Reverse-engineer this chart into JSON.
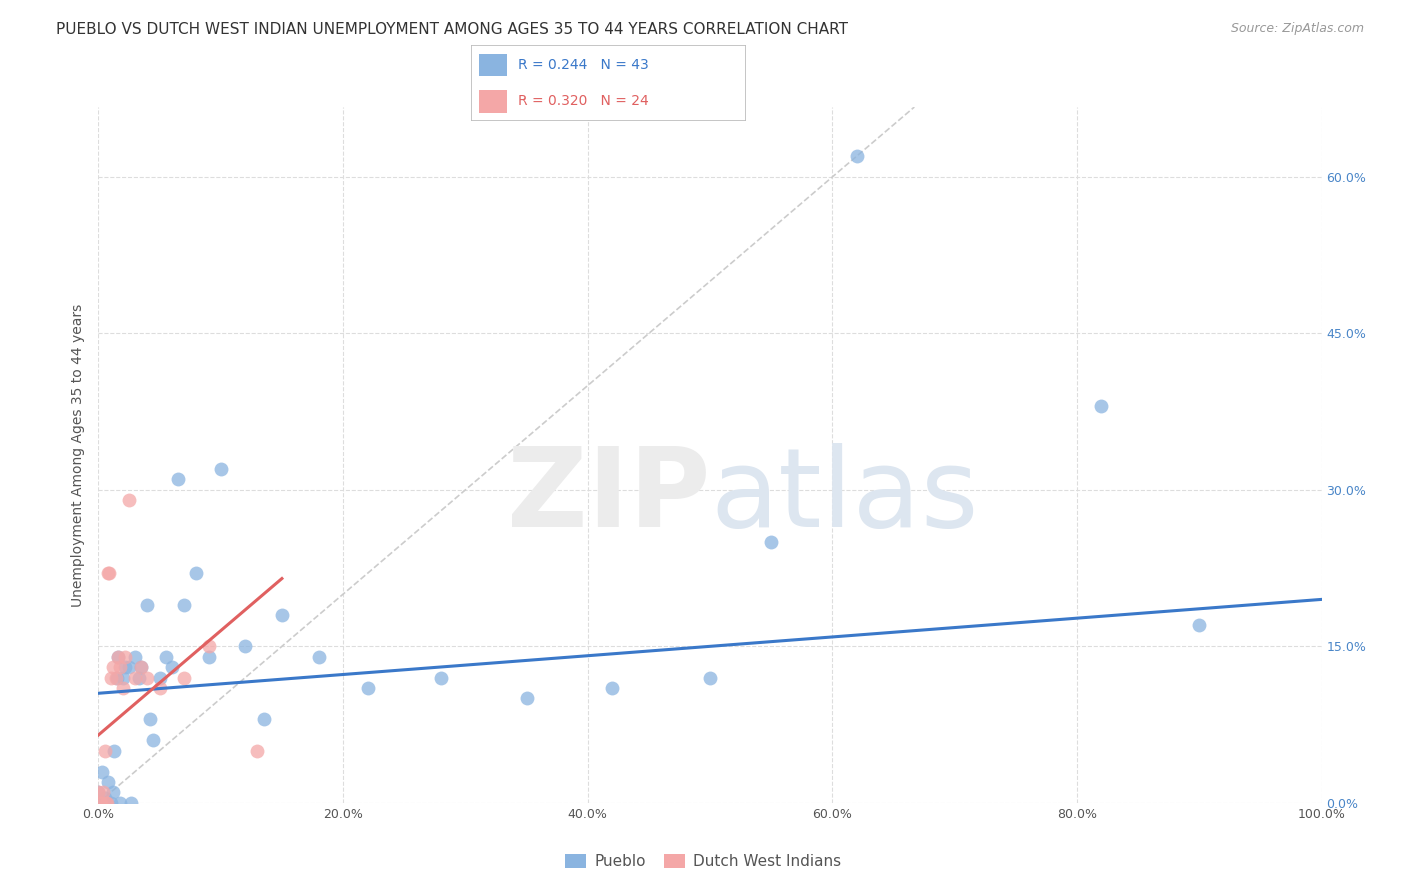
{
  "title": "PUEBLO VS DUTCH WEST INDIAN UNEMPLOYMENT AMONG AGES 35 TO 44 YEARS CORRELATION CHART",
  "source": "Source: ZipAtlas.com",
  "ylabel": "Unemployment Among Ages 35 to 44 years",
  "xlim": [
    0,
    1.0
  ],
  "ylim": [
    0,
    0.667
  ],
  "xtick_vals": [
    0.0,
    0.2,
    0.4,
    0.6,
    0.8,
    1.0
  ],
  "xtick_labels": [
    "0.0%",
    "20.0%",
    "40.0%",
    "60.0%",
    "80.0%",
    "100.0%"
  ],
  "ytick_vals": [
    0.0,
    0.15,
    0.3,
    0.45,
    0.6
  ],
  "ytick_labels": [
    "0.0%",
    "15.0%",
    "30.0%",
    "45.0%",
    "60.0%"
  ],
  "pueblo_R": "0.244",
  "pueblo_N": "43",
  "dutch_R": "0.320",
  "dutch_N": "24",
  "pueblo_color": "#8ab4e0",
  "dutch_color": "#f4a7a7",
  "pueblo_line_color": "#3a78c9",
  "dutch_line_color": "#e06060",
  "diagonal_color": "#cccccc",
  "pueblo_x": [
    0.0,
    0.002,
    0.003,
    0.005,
    0.007,
    0.008,
    0.01,
    0.012,
    0.013,
    0.015,
    0.016,
    0.018,
    0.02,
    0.022,
    0.025,
    0.027,
    0.03,
    0.033,
    0.035,
    0.04,
    0.042,
    0.045,
    0.05,
    0.055,
    0.06,
    0.065,
    0.07,
    0.08,
    0.09,
    0.1,
    0.12,
    0.135,
    0.15,
    0.18,
    0.22,
    0.28,
    0.35,
    0.42,
    0.5,
    0.55,
    0.62,
    0.82,
    0.9
  ],
  "pueblo_y": [
    0.01,
    0.0,
    0.03,
    0.005,
    0.0,
    0.02,
    0.0,
    0.01,
    0.05,
    0.12,
    0.14,
    0.0,
    0.12,
    0.13,
    0.13,
    0.0,
    0.14,
    0.12,
    0.13,
    0.19,
    0.08,
    0.06,
    0.12,
    0.14,
    0.13,
    0.31,
    0.19,
    0.22,
    0.14,
    0.32,
    0.15,
    0.08,
    0.18,
    0.14,
    0.11,
    0.12,
    0.1,
    0.11,
    0.12,
    0.25,
    0.62,
    0.38,
    0.17
  ],
  "dutch_x": [
    0.0,
    0.001,
    0.002,
    0.004,
    0.005,
    0.006,
    0.007,
    0.008,
    0.009,
    0.01,
    0.012,
    0.014,
    0.016,
    0.018,
    0.02,
    0.022,
    0.025,
    0.03,
    0.035,
    0.04,
    0.05,
    0.07,
    0.09,
    0.13
  ],
  "dutch_y": [
    0.01,
    0.0,
    0.0,
    0.01,
    0.05,
    0.0,
    0.0,
    0.22,
    0.22,
    0.12,
    0.13,
    0.12,
    0.14,
    0.13,
    0.11,
    0.14,
    0.29,
    0.12,
    0.13,
    0.12,
    0.11,
    0.12,
    0.15,
    0.05
  ],
  "pueblo_trend_x": [
    0.0,
    1.0
  ],
  "pueblo_trend_y": [
    0.105,
    0.195
  ],
  "dutch_trend_x": [
    0.0,
    0.15
  ],
  "dutch_trend_y": [
    0.065,
    0.215
  ],
  "background_color": "#ffffff",
  "grid_color": "#dddddd",
  "title_fontsize": 11,
  "axis_label_fontsize": 10,
  "tick_fontsize": 9
}
